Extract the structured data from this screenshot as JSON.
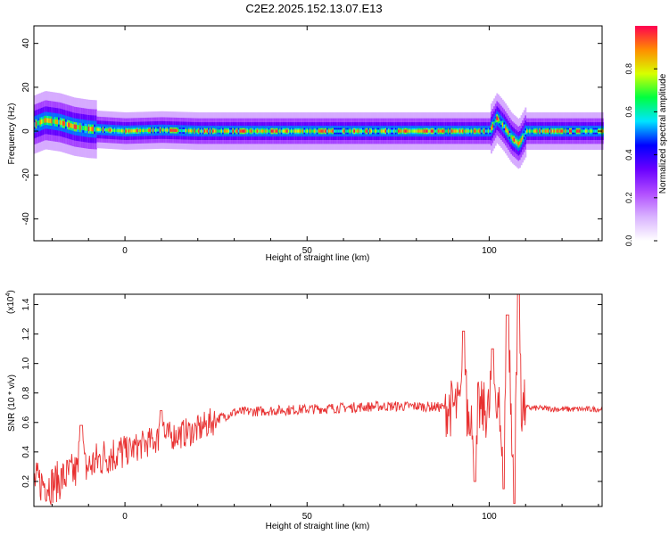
{
  "title": "C2E2.2025.152.13.07.E13",
  "chart_data": [
    {
      "type": "heatmap",
      "title": "C2E2.2025.152.13.07.E13",
      "xlabel": "Height of straight line (km)",
      "ylabel": "Frequency (Hz)",
      "xlim": [
        -25,
        131
      ],
      "ylim": [
        -50,
        48
      ],
      "x_ticks": [
        0,
        50,
        100
      ],
      "y_ticks": [
        -40,
        -20,
        0,
        20,
        40
      ],
      "colorbar": {
        "label": "Normalized spectral amplitude",
        "range": [
          0,
          1
        ],
        "ticks": [
          0,
          0.2,
          0.4,
          0.6,
          0.8
        ]
      },
      "colormap": [
        "#ffffff",
        "#d9b3ff",
        "#b04dff",
        "#6a00ff",
        "#0000ff",
        "#00e5ff",
        "#00ff40",
        "#d8ff00",
        "#ff8c00",
        "#ff0050"
      ],
      "ridge": {
        "x": [
          -25,
          -22,
          -18,
          -14,
          -10,
          -5,
          0,
          10,
          20,
          30,
          50,
          70,
          90,
          100,
          102,
          104,
          106,
          108,
          110,
          120,
          131
        ],
        "frequency": [
          3,
          5,
          4,
          2,
          1,
          0.5,
          0,
          0.5,
          0,
          0,
          0,
          0,
          0,
          0,
          6,
          2,
          -3,
          -6,
          0,
          0,
          0
        ]
      }
    },
    {
      "type": "line",
      "xlabel": "Height of straight line (km)",
      "ylabel": "SNR (10 * v/v)",
      "y_multiplier": "(x10",
      "y_multiplier_exp": "4",
      "y_multiplier_close": ")",
      "xlim": [
        -25,
        131
      ],
      "ylim": [
        0.03,
        1.47
      ],
      "x_ticks": [
        0,
        50,
        100
      ],
      "y_ticks": [
        0.2,
        0.4,
        0.6,
        0.8,
        1.0,
        1.2,
        1.4
      ],
      "y_tick_labels": [
        "0.2",
        "0.4",
        "0.6",
        "0.8",
        "1.0",
        "1.2",
        "1.4"
      ],
      "line_color": "#e83030",
      "trend": {
        "x": [
          -25,
          -20,
          -15,
          -10,
          -5,
          0,
          5,
          10,
          15,
          20,
          25,
          30,
          40,
          50,
          60,
          70,
          80,
          90,
          100,
          110,
          120,
          131
        ],
        "y": [
          0.2,
          0.18,
          0.25,
          0.3,
          0.38,
          0.4,
          0.45,
          0.5,
          0.52,
          0.55,
          0.62,
          0.67,
          0.68,
          0.69,
          0.7,
          0.71,
          0.71,
          0.7,
          0.68,
          0.7,
          0.69,
          0.69
        ]
      },
      "spikes": [
        {
          "x": -12,
          "y": 0.58
        },
        {
          "x": 10,
          "y": 0.68
        },
        {
          "x": 93,
          "y": 1.22
        },
        {
          "x": 96,
          "y": 0.2
        },
        {
          "x": 101,
          "y": 1.1
        },
        {
          "x": 104,
          "y": 0.15
        },
        {
          "x": 105,
          "y": 1.33
        },
        {
          "x": 107,
          "y": 0.05
        },
        {
          "x": 108,
          "y": 1.47
        }
      ]
    }
  ]
}
